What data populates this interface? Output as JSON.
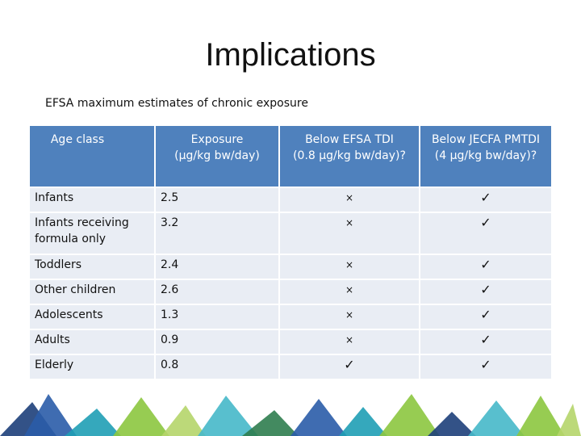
{
  "slide": {
    "title": "Implications",
    "subtitle": "EFSA maximum estimates of chronic exposure"
  },
  "table": {
    "headers": {
      "age_class": "Age class",
      "exposure": [
        "Exposure",
        "(µg/kg bw/day)"
      ],
      "efsa": [
        "Below EFSA TDI",
        "(0.8 µg/kg bw/day)?"
      ],
      "jecfa": [
        "Below JECFA PMTDI",
        "(4 µg/kg bw/day)?"
      ]
    },
    "rows": [
      {
        "age": "Infants",
        "exposure": "2.5",
        "efsa": "×",
        "jecfa": "✓"
      },
      {
        "age": "Infants receiving formula only",
        "exposure": "3.2",
        "efsa": "×",
        "jecfa": "✓"
      },
      {
        "age": "Toddlers",
        "exposure": "2.4",
        "efsa": "×",
        "jecfa": "✓"
      },
      {
        "age": "Other children",
        "exposure": "2.6",
        "efsa": "×",
        "jecfa": "✓"
      },
      {
        "age": "Adolescents",
        "exposure": "1.3",
        "efsa": "×",
        "jecfa": "✓"
      },
      {
        "age": "Adults",
        "exposure": "0.9",
        "efsa": "×",
        "jecfa": "✓"
      },
      {
        "age": "Elderly",
        "exposure": "0.8",
        "efsa": "✓",
        "jecfa": "✓"
      }
    ]
  },
  "colors": {
    "header": "#4f81bd",
    "row": "#e9edf4",
    "banner": [
      "#1d3f7a",
      "#2a5ca8",
      "#1f9fb5",
      "#46b8c9",
      "#8cc63f",
      "#b5d56a",
      "#2f7d4f"
    ]
  }
}
